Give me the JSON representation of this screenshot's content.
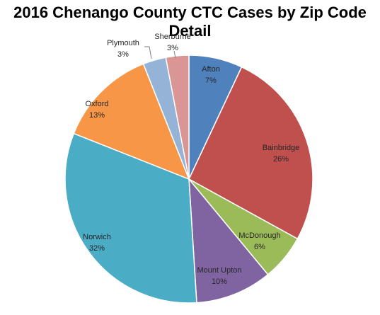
{
  "chart_data": {
    "type": "pie",
    "title": "2016 Chenango County CTC Cases by Zip Code Detail",
    "slices": [
      {
        "label": "Afton",
        "value": 7,
        "display": "7%",
        "color": "#4f81bd"
      },
      {
        "label": "Bainbridge",
        "value": 26,
        "display": "26%",
        "color": "#c0504d"
      },
      {
        "label": "McDonough",
        "value": 6,
        "display": "6%",
        "color": "#9bbb59"
      },
      {
        "label": "Mount Upton",
        "value": 10,
        "display": "10%",
        "color": "#8064a2"
      },
      {
        "label": "Norwich",
        "value": 32,
        "display": "32%",
        "color": "#4bacc6"
      },
      {
        "label": "Oxford",
        "value": 13,
        "display": "13%",
        "color": "#f79646"
      },
      {
        "label": "Plymouth",
        "value": 3,
        "display": "3%",
        "color": "#95b3d7"
      },
      {
        "label": "Sherburne",
        "value": 3,
        "display": "3%",
        "color": "#d99694"
      }
    ],
    "start_angle": "12 o'clock",
    "direction": "clockwise",
    "legend": "none",
    "data_labels": "category name and percentage"
  }
}
